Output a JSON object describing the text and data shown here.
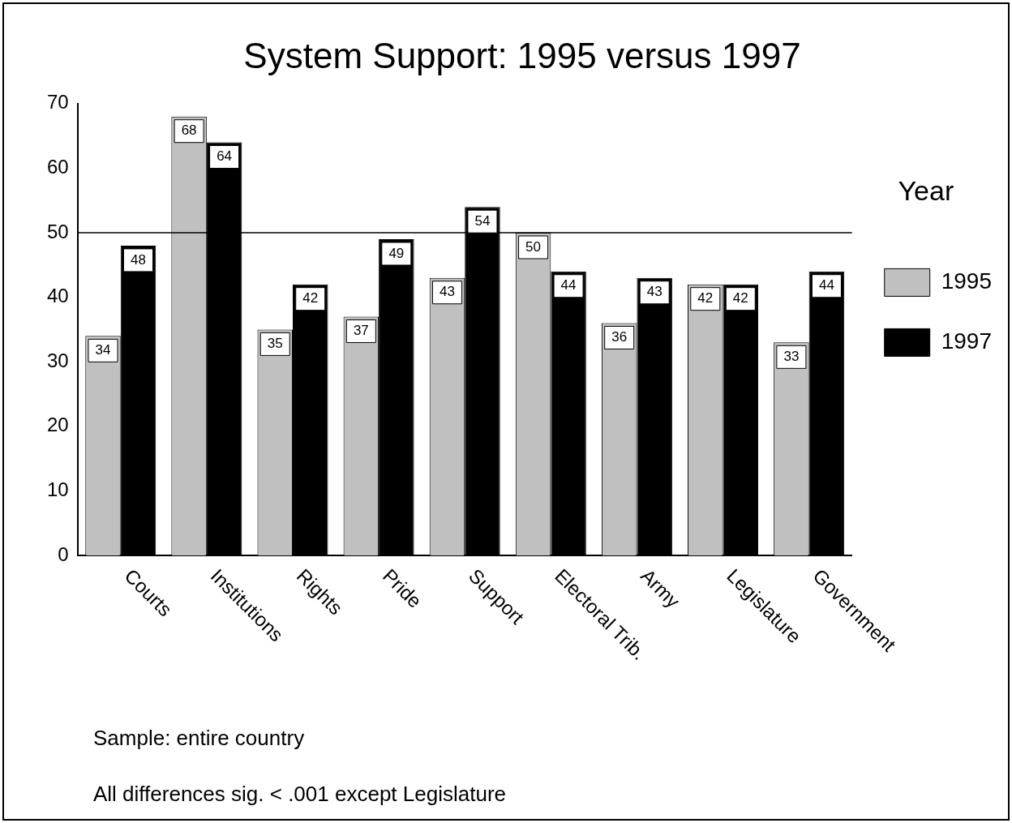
{
  "chart_data": {
    "type": "bar",
    "title": "System Support: 1995 versus 1997",
    "categories": [
      "Courts",
      "Institutions",
      "Rights",
      "Pride",
      "Support",
      "Electoral Trib.",
      "Army",
      "Legislature",
      "Government"
    ],
    "series": [
      {
        "name": "1995",
        "color": "#c0c0c0",
        "values": [
          34,
          68,
          35,
          37,
          43,
          50,
          36,
          42,
          33
        ]
      },
      {
        "name": "1997",
        "color": "#000000",
        "values": [
          48,
          64,
          42,
          49,
          54,
          44,
          43,
          42,
          44
        ]
      }
    ],
    "ylim": [
      0,
      70
    ],
    "yticks": [
      0,
      10,
      20,
      30,
      40,
      50,
      60,
      70
    ],
    "ref_lines": [
      {
        "axis": "y",
        "value": 50,
        "color": "#000000"
      }
    ],
    "data_labels": true,
    "legend": "right",
    "legend_title": "Year",
    "grid": false,
    "annotations": [
      "Sample: entire country",
      "All differences sig. < .001 except Legislature"
    ]
  }
}
